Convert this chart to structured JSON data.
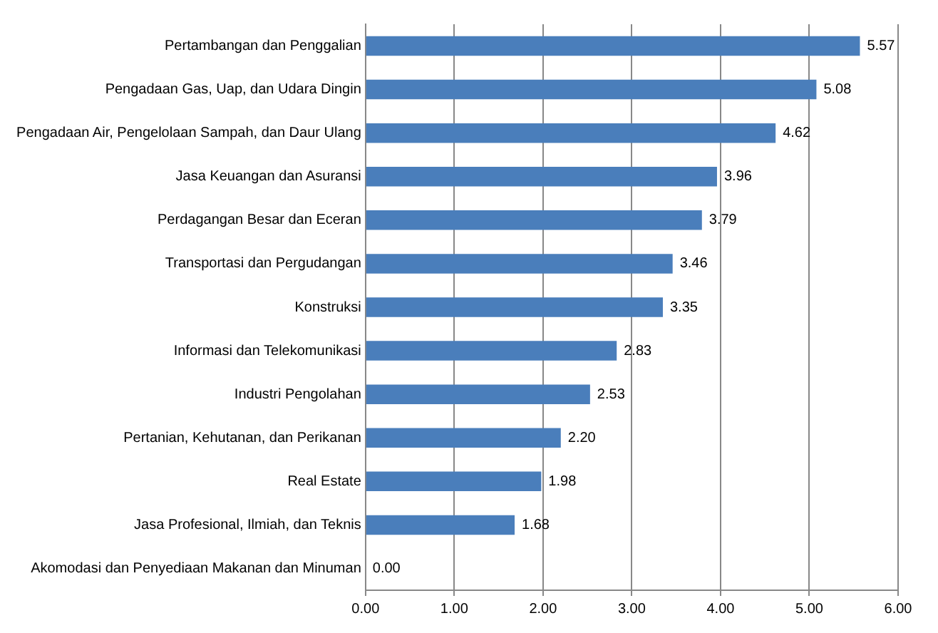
{
  "chart_data": {
    "type": "bar",
    "orientation": "horizontal",
    "categories": [
      "Pertambangan dan Penggalian",
      "Pengadaan Gas, Uap, dan Udara Dingin",
      "Pengadaan Air, Pengelolaan Sampah, dan Daur Ulang",
      "Jasa Keuangan dan Asuransi",
      "Perdagangan Besar dan Eceran",
      "Transportasi dan Pergudangan",
      "Konstruksi",
      "Informasi dan Telekomunikasi",
      "Industri Pengolahan",
      "Pertanian, Kehutanan, dan Perikanan",
      "Real Estate",
      "Jasa Profesional, Ilmiah, dan Teknis",
      "Akomodasi dan Penyediaan Makanan dan Minuman"
    ],
    "values": [
      5.57,
      5.08,
      4.62,
      3.96,
      3.79,
      3.46,
      3.35,
      2.83,
      2.53,
      2.2,
      1.98,
      1.68,
      0
    ],
    "value_labels": [
      "5.57",
      "5.08",
      "4.62",
      "3.96",
      "3.79",
      "3.46",
      "3.35",
      "2.83",
      "2.53",
      "2.20",
      "1.98",
      "1.68",
      "0.00"
    ],
    "color": "#4a7ebb",
    "xlim": [
      0,
      6
    ],
    "xticks": [
      {
        "value": 0,
        "label": "0.00"
      },
      {
        "value": 1,
        "label": "1.00"
      },
      {
        "value": 2,
        "label": "2.00"
      },
      {
        "value": 3,
        "label": "3.00"
      },
      {
        "value": 4,
        "label": "4.00"
      },
      {
        "value": 5,
        "label": "5.00"
      },
      {
        "value": 6,
        "label": "6.00"
      }
    ],
    "grid": "x"
  }
}
